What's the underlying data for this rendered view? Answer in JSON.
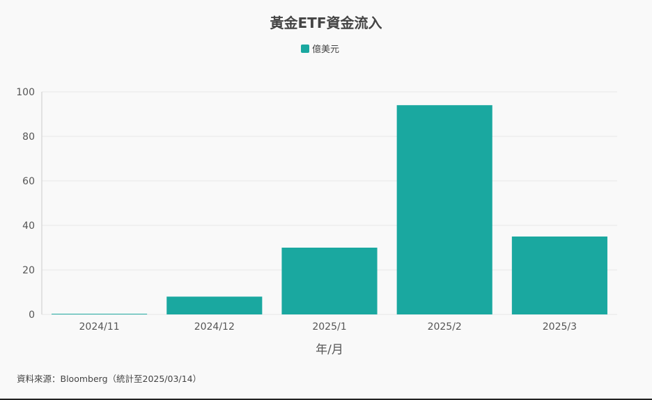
{
  "chart_data": {
    "type": "bar",
    "title": "黃金ETF資金流入",
    "xlabel": "年/月",
    "ylabel": "",
    "categories": [
      "2024/11",
      "2024/12",
      "2025/1",
      "2025/2",
      "2025/3"
    ],
    "series": [
      {
        "name": "億美元",
        "values": [
          0.3,
          8,
          30,
          94,
          35
        ]
      }
    ],
    "ylim": [
      0,
      100
    ],
    "yticks": [
      0,
      20,
      40,
      60,
      80,
      100
    ],
    "grid": true,
    "legend_position": "top-center",
    "bar_color": "#1aa8a0"
  },
  "source_note": "資料來源：Bloomberg（統計至2025/03/14）"
}
